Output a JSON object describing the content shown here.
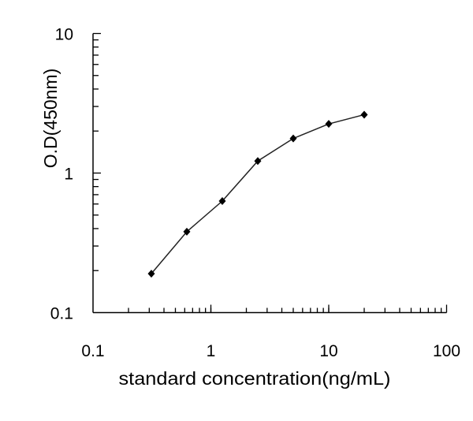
{
  "chart_data": {
    "type": "line",
    "title": "",
    "xlabel": "standard concentration(ng/mL)",
    "ylabel": "O.D(450nm)",
    "x_scale": "log",
    "y_scale": "log",
    "xlim": [
      0.1,
      100
    ],
    "ylim": [
      0.1,
      10
    ],
    "x_ticks": [
      "0.1",
      "1",
      "10",
      "100"
    ],
    "y_ticks": [
      "0.1",
      "1",
      "10"
    ],
    "grid": false,
    "marker": "diamond",
    "color": "#000000",
    "x": [
      0.3125,
      0.625,
      1.25,
      2.5,
      5,
      10,
      20
    ],
    "y": [
      0.19,
      0.38,
      0.63,
      1.22,
      1.77,
      2.25,
      2.62
    ]
  }
}
